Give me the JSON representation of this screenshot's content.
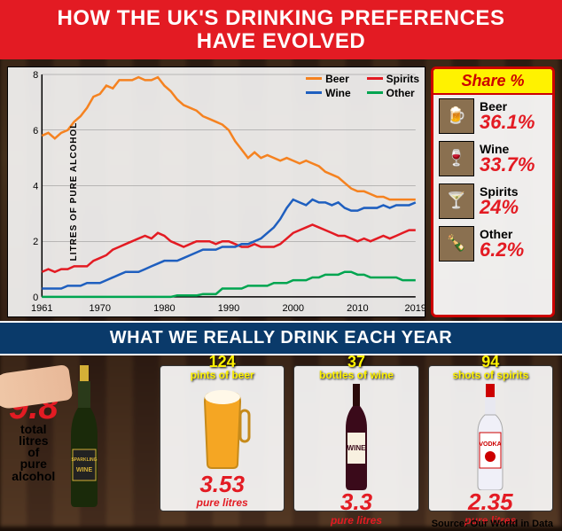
{
  "header": {
    "line1": "HOW THE UK'S DRINKING PREFERENCES",
    "line2": "HAVE EVOLVED"
  },
  "colors": {
    "header_bg": "#e31b23",
    "band_bg": "#0a3a6a",
    "accent_yellow": "#fff200",
    "beer": "#f58220",
    "spirits": "#e31b23",
    "wine": "#1f5fbf",
    "other": "#00a550",
    "chart_bg": "#ffffffE0",
    "grid": "#888888",
    "page_bg": "#1a0f08"
  },
  "chart": {
    "type": "line",
    "ylabel": "LITRES OF PURE ALCOHOL",
    "xlim": [
      1961,
      2019
    ],
    "ylim": [
      0,
      8
    ],
    "xticks": [
      1961,
      1970,
      1980,
      1990,
      2000,
      2010,
      2019
    ],
    "yticks": [
      0,
      2,
      4,
      6,
      8
    ],
    "line_width": 2.5,
    "legend": [
      {
        "label": "Beer",
        "color": "#f58220"
      },
      {
        "label": "Spirits",
        "color": "#e31b23"
      },
      {
        "label": "Wine",
        "color": "#1f5fbf"
      },
      {
        "label": "Other",
        "color": "#00a550"
      }
    ],
    "series": {
      "beer": [
        5.8,
        5.9,
        5.7,
        5.9,
        6.0,
        6.3,
        6.5,
        6.8,
        7.2,
        7.3,
        7.6,
        7.5,
        7.8,
        7.8,
        7.8,
        7.9,
        7.8,
        7.8,
        7.9,
        7.6,
        7.4,
        7.1,
        6.9,
        6.8,
        6.7,
        6.5,
        6.4,
        6.3,
        6.2,
        6.0,
        5.6,
        5.3,
        5.0,
        5.2,
        5.0,
        5.1,
        5.0,
        4.9,
        5.0,
        4.9,
        4.8,
        4.9,
        4.8,
        4.7,
        4.5,
        4.4,
        4.3,
        4.1,
        3.9,
        3.8,
        3.8,
        3.7,
        3.6,
        3.6,
        3.5,
        3.5,
        3.5,
        3.5,
        3.5
      ],
      "spirits": [
        0.9,
        1.0,
        0.9,
        1.0,
        1.0,
        1.1,
        1.1,
        1.1,
        1.3,
        1.4,
        1.5,
        1.7,
        1.8,
        1.9,
        2.0,
        2.1,
        2.2,
        2.1,
        2.3,
        2.2,
        2.0,
        1.9,
        1.8,
        1.9,
        2.0,
        2.0,
        2.0,
        1.9,
        2.0,
        2.0,
        1.9,
        1.8,
        1.8,
        1.9,
        1.8,
        1.8,
        1.8,
        1.9,
        2.1,
        2.3,
        2.4,
        2.5,
        2.6,
        2.5,
        2.4,
        2.3,
        2.2,
        2.2,
        2.1,
        2.0,
        2.1,
        2.0,
        2.1,
        2.2,
        2.1,
        2.2,
        2.3,
        2.4,
        2.4
      ],
      "wine": [
        0.3,
        0.3,
        0.3,
        0.3,
        0.4,
        0.4,
        0.4,
        0.5,
        0.5,
        0.5,
        0.6,
        0.7,
        0.8,
        0.9,
        0.9,
        0.9,
        1.0,
        1.1,
        1.2,
        1.3,
        1.3,
        1.3,
        1.4,
        1.5,
        1.6,
        1.7,
        1.7,
        1.7,
        1.8,
        1.8,
        1.8,
        1.9,
        1.9,
        2.0,
        2.1,
        2.3,
        2.5,
        2.8,
        3.2,
        3.5,
        3.4,
        3.3,
        3.5,
        3.4,
        3.4,
        3.3,
        3.4,
        3.2,
        3.1,
        3.1,
        3.2,
        3.2,
        3.2,
        3.3,
        3.2,
        3.3,
        3.3,
        3.3,
        3.4
      ],
      "other": [
        0,
        0,
        0,
        0,
        0,
        0,
        0,
        0,
        0,
        0,
        0,
        0,
        0,
        0,
        0,
        0,
        0,
        0,
        0,
        0,
        0,
        0.05,
        0.05,
        0.05,
        0.05,
        0.1,
        0.1,
        0.1,
        0.3,
        0.3,
        0.3,
        0.3,
        0.4,
        0.4,
        0.4,
        0.4,
        0.5,
        0.5,
        0.5,
        0.6,
        0.6,
        0.6,
        0.7,
        0.7,
        0.8,
        0.8,
        0.8,
        0.9,
        0.9,
        0.8,
        0.8,
        0.7,
        0.7,
        0.7,
        0.7,
        0.7,
        0.6,
        0.6,
        0.6
      ]
    }
  },
  "share": {
    "heading": "Share %",
    "items": [
      {
        "label": "Beer",
        "pct": "36.1%",
        "icon": "🍺"
      },
      {
        "label": "Wine",
        "pct": "33.7%",
        "icon": "🍷"
      },
      {
        "label": "Spirits",
        "pct": "24%",
        "icon": "🍸"
      },
      {
        "label": "Other",
        "pct": "6.2%",
        "icon": "🍾"
      }
    ]
  },
  "band": "WHAT WE REALLY DRINK EACH YEAR",
  "total": {
    "value": "9.8",
    "unit_lines": [
      "total",
      "litres",
      "of",
      "pure",
      "alcohol"
    ]
  },
  "cards": [
    {
      "top_n": "124",
      "top_txt": "pints of beer",
      "value": "3.53",
      "unit": "pure litres",
      "glyph": "beer"
    },
    {
      "top_n": "37",
      "top_txt": "bottles of wine",
      "value": "3.3",
      "unit": "pure litres",
      "glyph": "wine"
    },
    {
      "top_n": "94",
      "top_txt": "shots of spirits",
      "value": "2.35",
      "unit": "pure litres",
      "glyph": "vodka"
    }
  ],
  "source": "Source: Our World in Data"
}
